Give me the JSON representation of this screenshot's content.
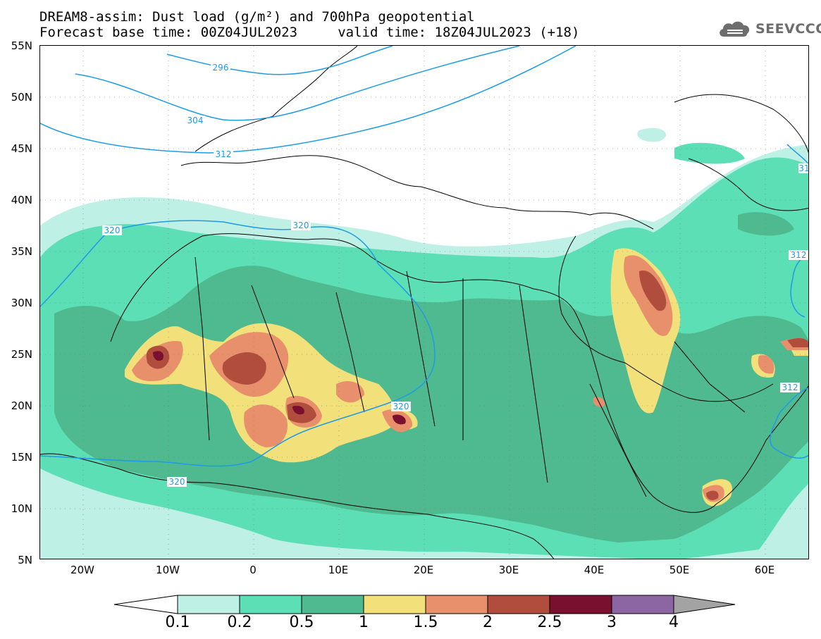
{
  "title": {
    "line1": "DREAM8-assim: Dust load (g/m²) and 700hPa geopotential",
    "line2": "Forecast base time: 00Z04JUL2023     valid time: 18Z04JUL2023 (+18)"
  },
  "logo": {
    "text": "SEEVCCC",
    "icon": "cloud-icon"
  },
  "axes": {
    "lat_labels": [
      "55N",
      "50N",
      "45N",
      "40N",
      "35N",
      "30N",
      "25N",
      "20N",
      "15N",
      "10N",
      "5N"
    ],
    "lon_labels": [
      "20W",
      "10W",
      "0",
      "10E",
      "20E",
      "30E",
      "40E",
      "50E",
      "60E"
    ]
  },
  "contours": {
    "color": "#1e9be8",
    "labels": [
      "296",
      "304",
      "312",
      "320",
      "320",
      "320",
      "320",
      "312",
      "312",
      "31"
    ]
  },
  "colorbar": {
    "ticks": [
      "0.1",
      "0.2",
      "0.5",
      "1",
      "1.5",
      "2",
      "2.5",
      "3",
      "4"
    ],
    "colors": [
      "#ffffff",
      "#bff0e6",
      "#5ddfb6",
      "#4fb98f",
      "#f2e07a",
      "#e8906b",
      "#b04d3d",
      "#7a1030",
      "#8b66a3",
      "#a3a3a3"
    ]
  }
}
